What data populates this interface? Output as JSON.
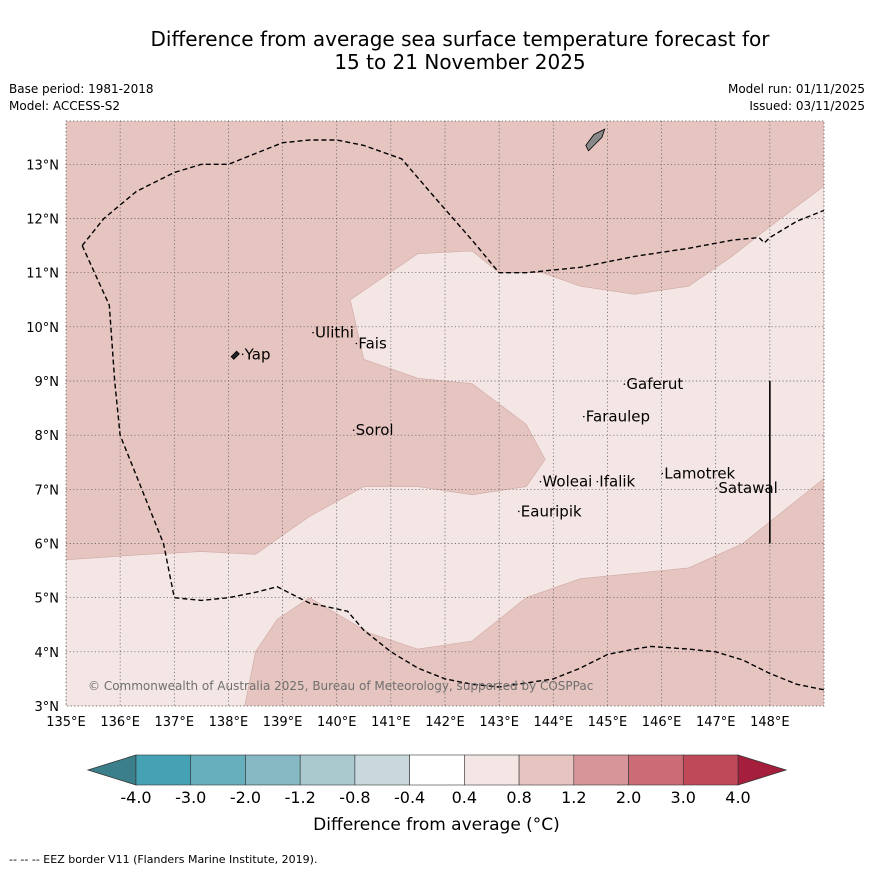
{
  "title": {
    "line1": "Difference from average sea surface temperature forecast for",
    "line2": "15 to 21 November 2025"
  },
  "meta_left": {
    "base_period": "Base period: 1981-2018",
    "model": "Model: ACCESS-S2"
  },
  "meta_right": {
    "model_run": "Model run: 01/11/2025",
    "issued": "Issued: 03/11/2025"
  },
  "map": {
    "lon_range": [
      135,
      149
    ],
    "lat_range": [
      3,
      13.8
    ],
    "lon_ticks": [
      "135°E",
      "136°E",
      "137°E",
      "138°E",
      "139°E",
      "140°E",
      "141°E",
      "142°E",
      "143°E",
      "144°E",
      "145°E",
      "146°E",
      "147°E",
      "148°E"
    ],
    "lat_ticks": [
      "3°N",
      "4°N",
      "5°N",
      "6°N",
      "7°N",
      "8°N",
      "9°N",
      "10°N",
      "11°N",
      "12°N",
      "13°N"
    ],
    "colors": {
      "anomaly_0.8_1.2": "#e6c5c1",
      "anomaly_0.4_0.8": "#f4e6e4",
      "grid": "#555555",
      "land": "#888888"
    },
    "places": [
      {
        "name": "Yap",
        "lon": 138.3,
        "lat": 9.4
      },
      {
        "name": "Ulithi",
        "lon": 139.6,
        "lat": 9.8
      },
      {
        "name": "Fais",
        "lon": 140.4,
        "lat": 9.6
      },
      {
        "name": "Sorol",
        "lon": 140.35,
        "lat": 8.0
      },
      {
        "name": "Gaferut",
        "lon": 145.35,
        "lat": 8.85
      },
      {
        "name": "Faraulep",
        "lon": 144.6,
        "lat": 8.25
      },
      {
        "name": "Woleai",
        "lon": 143.8,
        "lat": 7.05
      },
      {
        "name": "Ifalik",
        "lon": 144.85,
        "lat": 7.05
      },
      {
        "name": "Lamotrek",
        "lon": 146.05,
        "lat": 7.2
      },
      {
        "name": "Satawal",
        "lon": 147.05,
        "lat": 6.93
      },
      {
        "name": "Eauripik",
        "lon": 143.4,
        "lat": 6.5
      }
    ],
    "copyright": "© Commonwealth of Australia 2025, Bureau of Meteorology, supported by COSPPac"
  },
  "colorbar": {
    "ticks": [
      "-4.0",
      "-3.0",
      "-2.0",
      "-1.2",
      "-0.8",
      "-0.4",
      "0.4",
      "0.8",
      "1.2",
      "2.0",
      "3.0",
      "4.0"
    ],
    "colors": [
      "#45a2b4",
      "#67afbd",
      "#86b9c4",
      "#a9c9cf",
      "#c8d8dc",
      "#ffffff",
      "#f4e6e4",
      "#e6c5c1",
      "#d7959a",
      "#cb6b76",
      "#bf4859"
    ],
    "under_color": "#3b7f8a",
    "over_color": "#a51f3d",
    "label": "Difference from average (°C)"
  },
  "footer": "-- -- -- EEZ border V11 (Flanders Marine Institute, 2019)."
}
